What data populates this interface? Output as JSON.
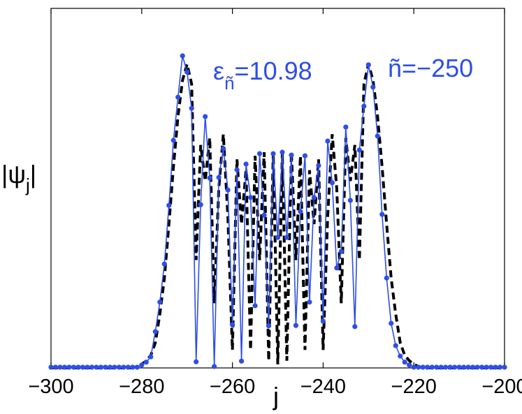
{
  "chart_data": {
    "type": "line",
    "xlabel": "j",
    "ylabel": {
      "text": "|ψ",
      "subscript": "j",
      "suffix": "|"
    },
    "annotations": [
      {
        "text": "ε",
        "subscript": "ñ",
        "suffix": "=10.98"
      },
      {
        "text": "ñ=−250"
      }
    ],
    "x": [
      -300,
      -299,
      -298,
      -297,
      -296,
      -295,
      -294,
      -293,
      -292,
      -291,
      -290,
      -289,
      -288,
      -287,
      -286,
      -285,
      -284,
      -283,
      -282,
      -281,
      -280,
      -279,
      -278,
      -277,
      -276,
      -275,
      -274,
      -273,
      -272,
      -271,
      -270,
      -269,
      -268,
      -267,
      -266,
      -265,
      -264,
      -263,
      -262,
      -261,
      -260,
      -259,
      -258,
      -257,
      -256,
      -255,
      -254,
      -253,
      -252,
      -251,
      -250,
      -249,
      -248,
      -247,
      -246,
      -245,
      -244,
      -243,
      -242,
      -241,
      -240,
      -239,
      -238,
      -237,
      -236,
      -235,
      -234,
      -233,
      -232,
      -231,
      -230,
      -229,
      -228,
      -227,
      -226,
      -225,
      -224,
      -223,
      -222,
      -221,
      -220,
      -219,
      -218,
      -217,
      -216,
      -215,
      -214,
      -213,
      -212,
      -211,
      -210,
      -209,
      -208,
      -207,
      -206,
      -205,
      -204,
      -203,
      -202,
      -201,
      -200
    ],
    "series": [
      {
        "color": "#2e4ee6",
        "style": "solid-markers",
        "values": [
          0.002,
          0.002,
          0.002,
          0.002,
          0.002,
          0.002,
          0.002,
          0.002,
          0.002,
          0.002,
          0.002,
          0.002,
          0.002,
          0.002,
          0.002,
          0.002,
          0.002,
          0.002,
          0.002,
          0.002,
          0.008,
          0.016,
          0.031,
          0.101,
          0.183,
          0.289,
          0.452,
          0.633,
          0.753,
          0.868,
          0.823,
          0.722,
          0.017,
          0.454,
          0.699,
          0.528,
          0.004,
          0.53,
          0.61,
          0.495,
          0.12,
          0.551,
          0.019,
          0.567,
          0.474,
          0.173,
          0.596,
          0.425,
          0.117,
          0.596,
          0.363,
          0.6,
          0.363,
          0.592,
          0.118,
          0.435,
          0.59,
          0.183,
          0.474,
          0.563,
          0.13,
          0.631,
          0.515,
          0.278,
          0.324,
          0.67,
          0.466,
          0.115,
          0.606,
          0.728,
          0.843,
          0.781,
          0.645,
          0.427,
          0.25,
          0.124,
          0.062,
          0.033,
          0.016,
          0.008,
          0.002,
          0.002,
          0.002,
          0.002,
          0.002,
          0.002,
          0.002,
          0.002,
          0.002,
          0.002,
          0.002,
          0.002,
          0.002,
          0.002,
          0.002,
          0.002,
          0.002,
          0.002,
          0.002,
          0.002,
          0.002
        ]
      },
      {
        "color": "#000000",
        "style": "dashed",
        "values": [
          0,
          0,
          0,
          0,
          0,
          0,
          0,
          0,
          0,
          0,
          0,
          0,
          0,
          0,
          0,
          0,
          0,
          0,
          0,
          0.004,
          0.01,
          0.02,
          0.035,
          0.07,
          0.15,
          0.25,
          0.4,
          0.56,
          0.7,
          0.8,
          0.845,
          0.79,
          0.3,
          0.62,
          0.52,
          0.64,
          0.18,
          0.5,
          0.65,
          0.42,
          0.05,
          0.58,
          0.4,
          0.55,
          0.05,
          0.59,
          0.3,
          0.6,
          0.02,
          0.6,
          0.01,
          0.6,
          0.02,
          0.6,
          0.3,
          0.59,
          0.05,
          0.55,
          0.4,
          0.58,
          0.05,
          0.42,
          0.65,
          0.5,
          0.18,
          0.64,
          0.52,
          0.62,
          0.3,
          0.79,
          0.845,
          0.8,
          0.7,
          0.56,
          0.4,
          0.25,
          0.15,
          0.07,
          0.035,
          0.02,
          0.01,
          0.004,
          0,
          0,
          0,
          0,
          0,
          0,
          0,
          0,
          0,
          0,
          0,
          0,
          0,
          0,
          0,
          0,
          0,
          0,
          0
        ]
      }
    ],
    "xlim": [
      -300,
      -200
    ],
    "xticks": [
      {
        "value": -300,
        "label": "−300"
      },
      {
        "value": -280,
        "label": "−280"
      },
      {
        "value": -260,
        "label": "−260"
      },
      {
        "value": -240,
        "label": "−240"
      },
      {
        "value": -220,
        "label": "−220"
      },
      {
        "value": -200,
        "label": "−200"
      }
    ],
    "ylim": [
      0,
      1
    ],
    "grid": false
  }
}
